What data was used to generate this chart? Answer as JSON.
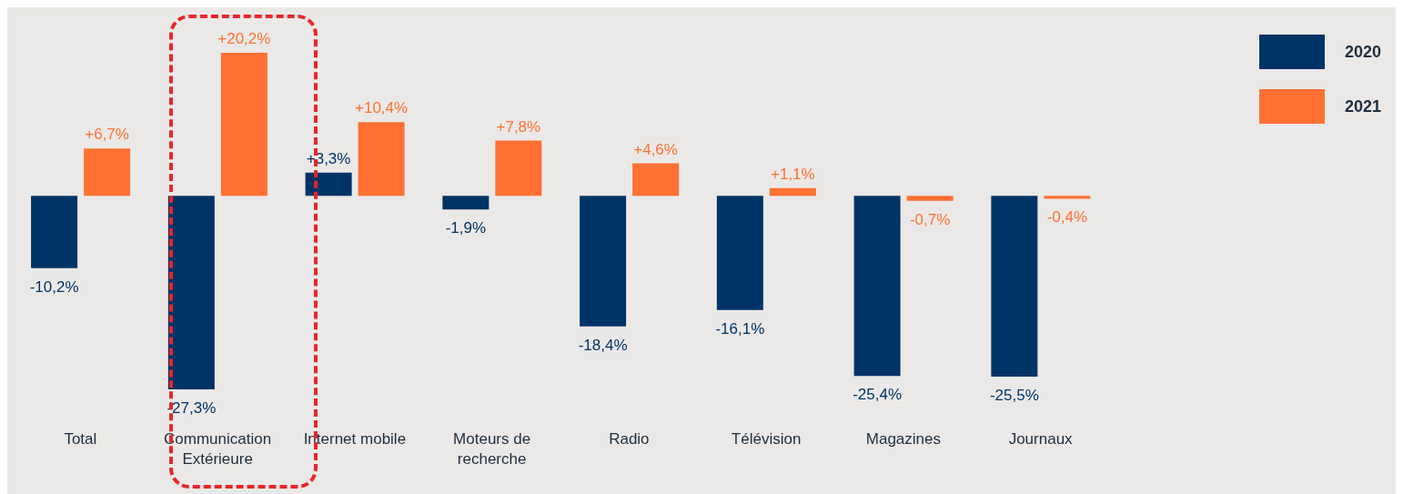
{
  "chart_data": {
    "type": "bar",
    "categories": [
      "Total",
      "Communication Extérieure",
      "Internet mobile",
      "Moteurs de recherche",
      "Radio",
      "Télévision",
      "Magazines",
      "Journaux"
    ],
    "series": [
      {
        "name": "2020",
        "color": "#003366",
        "values": [
          -10.2,
          -27.3,
          3.3,
          -1.9,
          -18.4,
          -16.1,
          -25.4,
          -25.5
        ],
        "value_labels": [
          "-10,2%",
          "-27,3%",
          "+3,3%",
          "-1,9%",
          "-18,4%",
          "-16,1%",
          "-25,4%",
          "-25,5%"
        ]
      },
      {
        "name": "2021",
        "color": "#ff7033",
        "values": [
          6.7,
          20.2,
          10.4,
          7.8,
          4.6,
          1.1,
          -0.7,
          -0.4
        ],
        "value_labels": [
          "+6,7%",
          "+20,2%",
          "+10,4%",
          "+7,8%",
          "+4,6%",
          "+1,1%",
          "-0,7%",
          "-0,4%"
        ]
      }
    ],
    "tick_labels": "x",
    "legend": "top right",
    "grid": false
  }
}
